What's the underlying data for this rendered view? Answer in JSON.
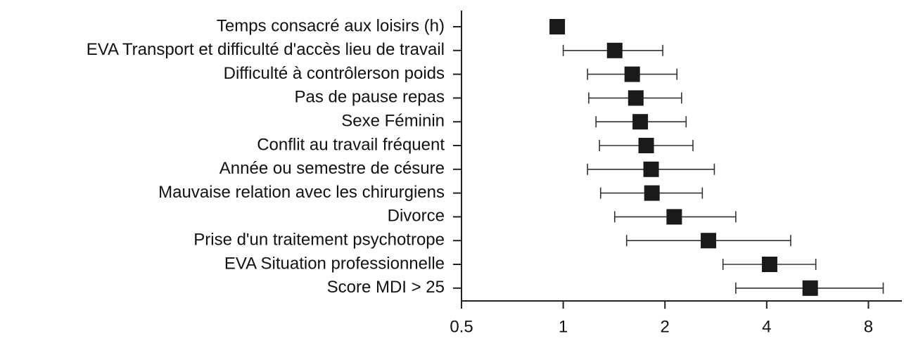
{
  "chart_data": {
    "type": "forest",
    "categories": [
      "Temps consacré aux loisirs (h)",
      "EVA Transport et difficulté d'accès lieu de travail",
      "Difficulté à contrôlerson poids",
      "Pas de pause repas",
      "Sexe Féminin",
      "Conflit au travail fréquent",
      "Année ou semestre de césure",
      "Mauvaise relation avec les chirurgiens",
      "Divorce",
      "Prise d'un traitement psychotrope",
      "EVA Situation professionnelle",
      "Score MDI > 25"
    ],
    "values": [
      0.96,
      1.42,
      1.6,
      1.64,
      1.69,
      1.76,
      1.82,
      1.83,
      2.13,
      2.69,
      4.08,
      5.38
    ],
    "lower": [
      null,
      1.0,
      1.18,
      1.19,
      1.25,
      1.28,
      1.18,
      1.29,
      1.42,
      1.54,
      2.97,
      3.24
    ],
    "upper": [
      null,
      1.97,
      2.17,
      2.24,
      2.31,
      2.42,
      2.8,
      2.58,
      3.24,
      4.71,
      5.59,
      8.85
    ],
    "color": "#1a1a1a",
    "xscale": "log",
    "xlim": [
      0.5,
      10
    ],
    "xticks": [
      0.5,
      1,
      2,
      4,
      8
    ]
  }
}
